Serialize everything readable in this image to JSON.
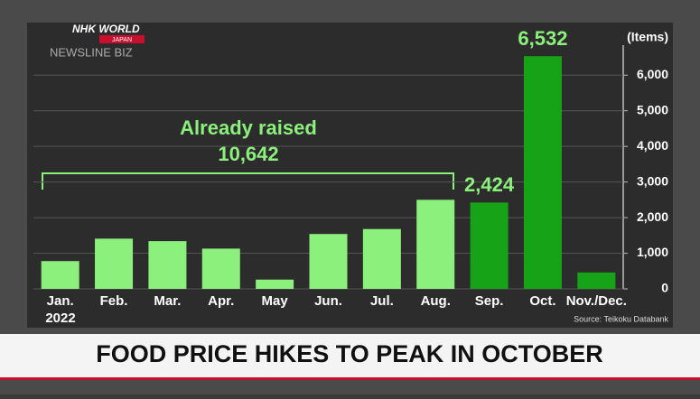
{
  "broadcast": {
    "brand": "NHK WORLD",
    "brand_sub": "JAPAN",
    "program": "NEWSLINE BIZ",
    "headline": "FOOD PRICE HIKES TO PEAK IN OCTOBER"
  },
  "chart_data": {
    "type": "bar",
    "categories": [
      "Jan.",
      "Feb.",
      "Mar.",
      "Apr.",
      "May",
      "Jun.",
      "Jul.",
      "Aug.",
      "Sep.",
      "Oct.",
      "Nov./Dec."
    ],
    "year_label": "2022",
    "values": [
      780,
      1410,
      1340,
      1130,
      260,
      1540,
      1680,
      2500,
      2424,
      6532,
      460
    ],
    "value_labels": [
      null,
      null,
      null,
      null,
      null,
      null,
      null,
      null,
      "2,424",
      "6,532",
      null
    ],
    "colors": [
      "#8cf07c",
      "#8cf07c",
      "#8cf07c",
      "#8cf07c",
      "#8cf07c",
      "#8cf07c",
      "#8cf07c",
      "#8cf07c",
      "#17a317",
      "#17a317",
      "#17a317"
    ],
    "y_axis_label": "(Items)",
    "ylim": [
      0,
      7400
    ],
    "yticks": [
      0,
      {
        "value": 1000,
        "label": "1,000"
      },
      {
        "value": 2000,
        "label": "2,000"
      },
      {
        "value": 3000,
        "label": "3,000"
      },
      {
        "value": 4000,
        "label": "4,000"
      },
      {
        "value": 5000,
        "label": "5,000"
      },
      {
        "value": 6000,
        "label": "6,000"
      }
    ],
    "grid": true,
    "annotation": {
      "text": "Already raised",
      "total": "10,642"
    },
    "source": "Source: Teikoku Databank"
  }
}
